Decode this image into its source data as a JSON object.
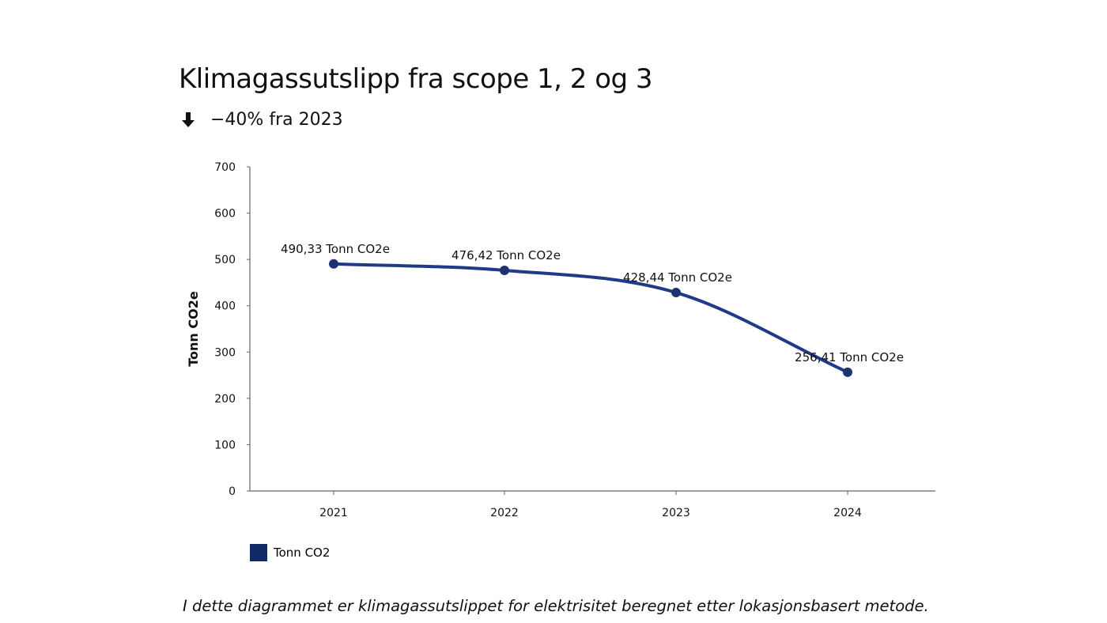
{
  "title": "Klimagassutslipp fra scope 1, 2 og 3",
  "subtitle": {
    "icon": "arrow-down-icon",
    "text": "−40% fra 2023"
  },
  "footnote": "I dette diagrammet er klimagassutslippet for elektrisitet beregnet etter lokasjonsbasert metode.",
  "colors": {
    "series": "#203a8a",
    "marker": "#1e3170",
    "legend_swatch": "#102a66",
    "axis": "#666666",
    "text": "#111111"
  },
  "chart_data": {
    "type": "line",
    "smooth": true,
    "categories": [
      "2021",
      "2022",
      "2023",
      "2024"
    ],
    "series": [
      {
        "name": "Tonn CO2",
        "values": [
          490.33,
          476.42,
          428.44,
          256.41
        ],
        "data_labels": [
          "490,33 Tonn CO2e",
          "476,42 Tonn CO2e",
          "428,44 Tonn CO2e",
          "256,41 Tonn CO2e"
        ]
      }
    ],
    "xlabel": "",
    "ylabel": "Tonn CO2e",
    "ylim": [
      0,
      700
    ],
    "yticks": [
      0,
      100,
      200,
      300,
      400,
      500,
      600,
      700
    ],
    "grid": false,
    "legend": "bottom-left"
  }
}
